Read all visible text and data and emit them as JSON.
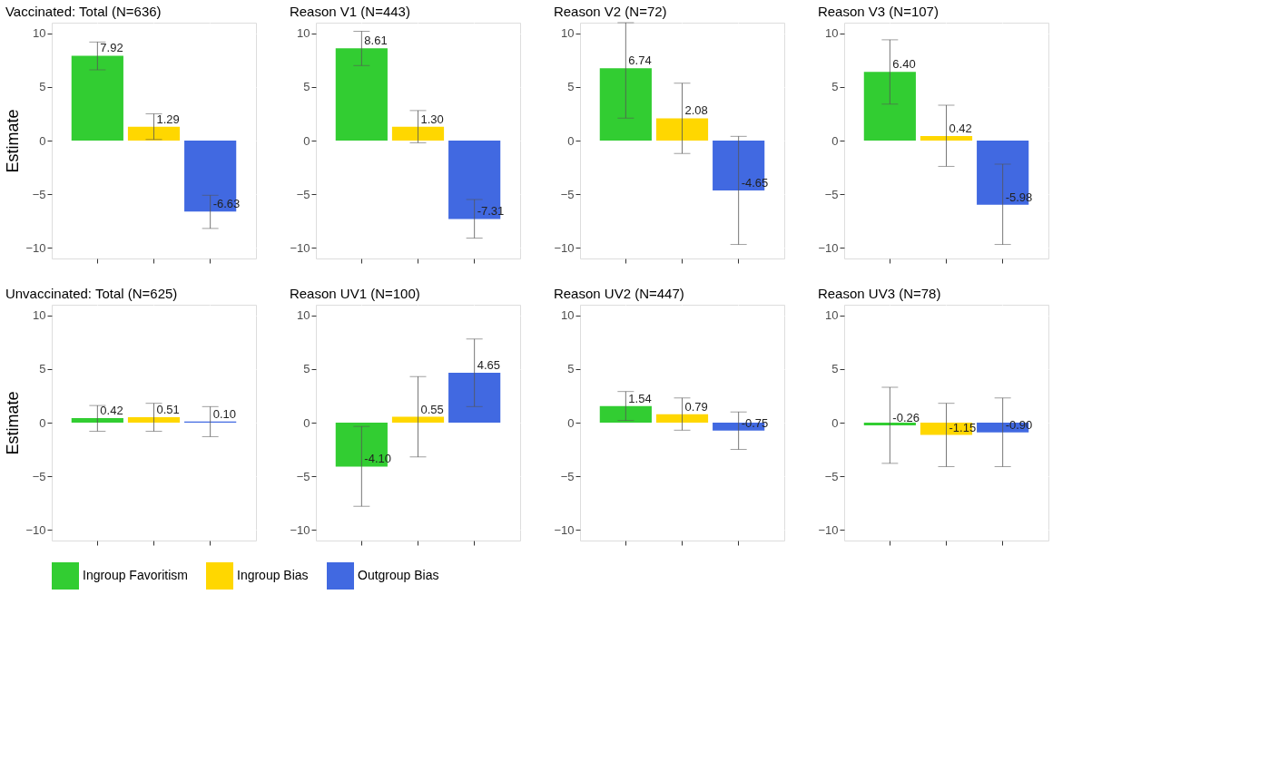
{
  "chart_data": [
    {
      "type": "bar",
      "title": "Vaccinated: Total (N=636)",
      "ylabel": "Estimate",
      "categories": [
        null,
        null,
        null
      ],
      "ylim": [
        -11,
        11
      ],
      "yticks": [
        -10,
        -5,
        0,
        5,
        10
      ],
      "grid": true,
      "tick_labels": "y",
      "legend": "bottom",
      "series": [
        {
          "name": "Ingroup Favoritism",
          "color": "#32cd32",
          "values": [
            7.92,
            null,
            null
          ],
          "value_labels": [
            "7.92",
            null,
            null
          ],
          "errors": [
            [
              6.6,
              9.2
            ],
            null,
            null
          ]
        },
        {
          "name": "Ingroup Bias",
          "color": "#ffd700",
          "values": [
            null,
            1.29,
            null
          ],
          "value_labels": [
            null,
            "1.29",
            null
          ],
          "errors": [
            null,
            [
              0.1,
              2.5
            ],
            null
          ]
        },
        {
          "name": "Outgroup Bias",
          "color": "#4169e1",
          "values": [
            null,
            null,
            -6.63
          ],
          "value_labels": [
            null,
            null,
            "-6.63"
          ],
          "errors": [
            null,
            null,
            [
              -8.2,
              -5.1
            ]
          ]
        }
      ]
    },
    {
      "type": "bar",
      "title": "Reason V1 (N=443)",
      "categories": [
        null,
        null,
        null
      ],
      "ylim": [
        -11,
        11
      ],
      "yticks": [
        -10,
        -5,
        0,
        5,
        10
      ],
      "grid": true,
      "tick_labels": "y",
      "series": [
        {
          "name": "Ingroup Favoritism",
          "color": "#32cd32",
          "values": [
            8.61,
            null,
            null
          ],
          "value_labels": [
            "8.61",
            null,
            null
          ],
          "errors": [
            [
              7.0,
              10.2
            ],
            null,
            null
          ]
        },
        {
          "name": "Ingroup Bias",
          "color": "#ffd700",
          "values": [
            null,
            1.3,
            null
          ],
          "value_labels": [
            null,
            "1.30",
            null
          ],
          "errors": [
            null,
            [
              -0.2,
              2.8
            ],
            null
          ]
        },
        {
          "name": "Outgroup Bias",
          "color": "#4169e1",
          "values": [
            null,
            null,
            -7.31
          ],
          "value_labels": [
            null,
            null,
            "-7.31"
          ],
          "errors": [
            null,
            null,
            [
              -9.1,
              -5.5
            ]
          ]
        }
      ]
    },
    {
      "type": "bar",
      "title": "Reason V2 (N=72)",
      "categories": [
        null,
        null,
        null
      ],
      "ylim": [
        -11,
        11
      ],
      "yticks": [
        -10,
        -5,
        0,
        5,
        10
      ],
      "grid": true,
      "tick_labels": "y",
      "series": [
        {
          "name": "Ingroup Favoritism",
          "color": "#32cd32",
          "values": [
            6.74,
            null,
            null
          ],
          "value_labels": [
            "6.74",
            null,
            null
          ],
          "errors": [
            [
              2.1,
              11
            ],
            null,
            null
          ]
        },
        {
          "name": "Ingroup Bias",
          "color": "#ffd700",
          "values": [
            null,
            2.08,
            null
          ],
          "value_labels": [
            null,
            "2.08",
            null
          ],
          "errors": [
            null,
            [
              -1.2,
              5.35
            ],
            null
          ]
        },
        {
          "name": "Outgroup Bias",
          "color": "#4169e1",
          "values": [
            null,
            null,
            -4.65
          ],
          "value_labels": [
            null,
            null,
            "-4.65"
          ],
          "errors": [
            null,
            null,
            [
              -9.7,
              0.4
            ]
          ]
        }
      ]
    },
    {
      "type": "bar",
      "title": "Reason V3 (N=107)",
      "categories": [
        null,
        null,
        null
      ],
      "ylim": [
        -11,
        11
      ],
      "yticks": [
        -10,
        -5,
        0,
        5,
        10
      ],
      "grid": true,
      "tick_labels": "y",
      "series": [
        {
          "name": "Ingroup Favoritism",
          "color": "#32cd32",
          "values": [
            6.4,
            null,
            null
          ],
          "value_labels": [
            "6.40",
            null,
            null
          ],
          "errors": [
            [
              3.4,
              9.4
            ],
            null,
            null
          ]
        },
        {
          "name": "Ingroup Bias",
          "color": "#ffd700",
          "values": [
            null,
            0.42,
            null
          ],
          "value_labels": [
            null,
            "0.42",
            null
          ],
          "errors": [
            null,
            [
              -2.4,
              3.3
            ],
            null
          ]
        },
        {
          "name": "Outgroup Bias",
          "color": "#4169e1",
          "values": [
            null,
            null,
            -5.98
          ],
          "value_labels": [
            null,
            null,
            "-5.98"
          ],
          "errors": [
            null,
            null,
            [
              -9.7,
              -2.2
            ]
          ]
        }
      ]
    },
    {
      "type": "bar",
      "title": "Unvaccinated: Total (N=625)",
      "ylabel": "Estimate",
      "categories": [
        null,
        null,
        null
      ],
      "ylim": [
        -11,
        11
      ],
      "yticks": [
        -10,
        -5,
        0,
        5,
        10
      ],
      "grid": true,
      "tick_labels": "y",
      "series": [
        {
          "name": "Ingroup Favoritism",
          "color": "#32cd32",
          "values": [
            0.42,
            null,
            null
          ],
          "value_labels": [
            "0.42",
            null,
            null
          ],
          "errors": [
            [
              -0.8,
              1.6
            ],
            null,
            null
          ]
        },
        {
          "name": "Ingroup Bias",
          "color": "#ffd700",
          "values": [
            null,
            0.51,
            null
          ],
          "value_labels": [
            null,
            "0.51",
            null
          ],
          "errors": [
            null,
            [
              -0.8,
              1.8
            ],
            null
          ]
        },
        {
          "name": "Outgroup Bias",
          "color": "#4169e1",
          "values": [
            null,
            null,
            0.1
          ],
          "value_labels": [
            null,
            null,
            "0.10"
          ],
          "errors": [
            null,
            null,
            [
              -1.3,
              1.5
            ]
          ]
        }
      ]
    },
    {
      "type": "bar",
      "title": "Reason UV1 (N=100)",
      "categories": [
        null,
        null,
        null
      ],
      "ylim": [
        -11,
        11
      ],
      "yticks": [
        -10,
        -5,
        0,
        5,
        10
      ],
      "grid": true,
      "tick_labels": "y",
      "series": [
        {
          "name": "Ingroup Favoritism",
          "color": "#32cd32",
          "values": [
            -4.1,
            null,
            null
          ],
          "value_labels": [
            "-4.10",
            null,
            null
          ],
          "errors": [
            [
              -7.8,
              -0.35
            ],
            null,
            null
          ]
        },
        {
          "name": "Ingroup Bias",
          "color": "#ffd700",
          "values": [
            null,
            0.55,
            null
          ],
          "value_labels": [
            null,
            "0.55",
            null
          ],
          "errors": [
            null,
            [
              -3.2,
              4.3
            ],
            null
          ]
        },
        {
          "name": "Outgroup Bias",
          "color": "#4169e1",
          "values": [
            null,
            null,
            4.65
          ],
          "value_labels": [
            null,
            null,
            "4.65"
          ],
          "errors": [
            null,
            null,
            [
              1.5,
              7.8
            ]
          ]
        }
      ]
    },
    {
      "type": "bar",
      "title": "Reason UV2 (N=447)",
      "categories": [
        null,
        null,
        null
      ],
      "ylim": [
        -11,
        11
      ],
      "yticks": [
        -10,
        -5,
        0,
        5,
        10
      ],
      "grid": true,
      "tick_labels": "y",
      "series": [
        {
          "name": "Ingroup Favoritism",
          "color": "#32cd32",
          "values": [
            1.54,
            null,
            null
          ],
          "value_labels": [
            "1.54",
            null,
            null
          ],
          "errors": [
            [
              0.2,
              2.9
            ],
            null,
            null
          ]
        },
        {
          "name": "Ingroup Bias",
          "color": "#ffd700",
          "values": [
            null,
            0.79,
            null
          ],
          "value_labels": [
            null,
            "0.79",
            null
          ],
          "errors": [
            null,
            [
              -0.7,
              2.3
            ],
            null
          ]
        },
        {
          "name": "Outgroup Bias",
          "color": "#4169e1",
          "values": [
            null,
            null,
            -0.75
          ],
          "value_labels": [
            null,
            null,
            "-0.75"
          ],
          "errors": [
            null,
            null,
            [
              -2.5,
              1.0
            ]
          ]
        }
      ]
    },
    {
      "type": "bar",
      "title": "Reason UV3 (N=78)",
      "categories": [
        null,
        null,
        null
      ],
      "ylim": [
        -11,
        11
      ],
      "yticks": [
        -10,
        -5,
        0,
        5,
        10
      ],
      "grid": true,
      "tick_labels": "y",
      "series": [
        {
          "name": "Ingroup Favoritism",
          "color": "#32cd32",
          "values": [
            -0.26,
            null,
            null
          ],
          "value_labels": [
            "-0.26",
            null,
            null
          ],
          "errors": [
            [
              -3.8,
              3.3
            ],
            null,
            null
          ]
        },
        {
          "name": "Ingroup Bias",
          "color": "#ffd700",
          "values": [
            null,
            -1.15,
            null
          ],
          "value_labels": [
            null,
            "-1.15",
            null
          ],
          "errors": [
            null,
            [
              -4.1,
              1.8
            ],
            null
          ]
        },
        {
          "name": "Outgroup Bias",
          "color": "#4169e1",
          "values": [
            null,
            null,
            -0.9
          ],
          "value_labels": [
            null,
            null,
            "-0.90"
          ],
          "errors": [
            null,
            null,
            [
              -4.1,
              2.3
            ]
          ]
        }
      ]
    }
  ]
}
